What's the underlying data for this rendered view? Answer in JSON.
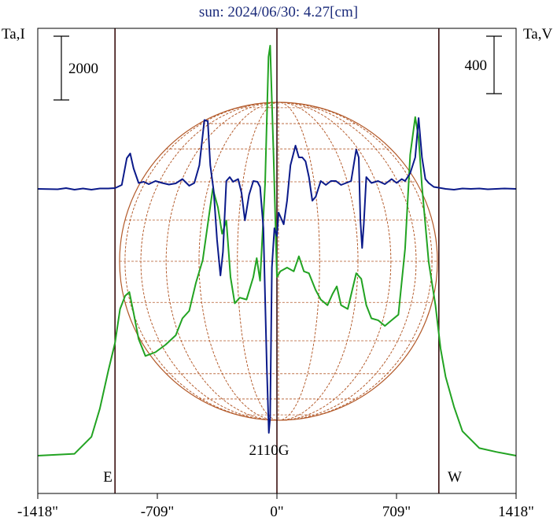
{
  "chart_data": {
    "type": "line",
    "title": "sun: 2024/06/30: 4.27[cm]",
    "left_axis_label": "Ta,I",
    "right_axis_label": "Ta,V",
    "left_scale_bar_label": "2000",
    "right_scale_bar_label": "400",
    "x_tick_labels": [
      "-1418\"",
      "-709\"",
      "0\"",
      "709\"",
      "1418\""
    ],
    "x_tick_values": [
      -1418,
      -709,
      0,
      709,
      1418
    ],
    "xlim": [
      -1418,
      1418
    ],
    "east_label": "E",
    "west_label": "W",
    "limb_lines": [
      -960,
      0,
      960
    ],
    "annotation": "2110G",
    "annotation_x": -40,
    "colors": {
      "stokes_I": "#22a322",
      "stokes_V": "#0b1a8a",
      "disk_grid": "#b35a2a",
      "frame": "#000000",
      "limb": "#3a1010",
      "title": "#1a2a7a"
    },
    "series": [
      {
        "key": "I",
        "values": [
          [
            -1418,
            0.0
          ],
          [
            -1200,
            0.01
          ],
          [
            -1100,
            0.1
          ],
          [
            -1050,
            0.25
          ],
          [
            -1000,
            0.45
          ],
          [
            -960,
            0.6
          ],
          [
            -930,
            0.78
          ],
          [
            -900,
            0.85
          ],
          [
            -875,
            0.87
          ],
          [
            -850,
            0.76
          ],
          [
            -820,
            0.62
          ],
          [
            -780,
            0.53
          ],
          [
            -720,
            0.55
          ],
          [
            -660,
            0.59
          ],
          [
            -600,
            0.64
          ],
          [
            -560,
            0.73
          ],
          [
            -520,
            0.77
          ],
          [
            -480,
            0.92
          ],
          [
            -440,
            1.04
          ],
          [
            -410,
            1.23
          ],
          [
            -380,
            1.42
          ],
          [
            -350,
            1.32
          ],
          [
            -325,
            1.18
          ],
          [
            -300,
            1.25
          ],
          [
            -275,
            0.95
          ],
          [
            -250,
            0.81
          ],
          [
            -220,
            0.84
          ],
          [
            -180,
            0.83
          ],
          [
            -140,
            0.95
          ],
          [
            -120,
            1.05
          ],
          [
            -100,
            0.93
          ],
          [
            -70,
            1.45
          ],
          [
            -50,
            2.12
          ],
          [
            -40,
            2.18
          ],
          [
            -20,
            1.6
          ],
          [
            0,
            0.95
          ],
          [
            20,
            0.98
          ],
          [
            60,
            1.0
          ],
          [
            100,
            0.98
          ],
          [
            130,
            1.06
          ],
          [
            160,
            0.98
          ],
          [
            190,
            0.97
          ],
          [
            230,
            0.88
          ],
          [
            260,
            0.83
          ],
          [
            300,
            0.8
          ],
          [
            330,
            0.86
          ],
          [
            355,
            0.9
          ],
          [
            380,
            0.8
          ],
          [
            420,
            0.78
          ],
          [
            470,
            0.97
          ],
          [
            500,
            0.94
          ],
          [
            530,
            0.8
          ],
          [
            560,
            0.73
          ],
          [
            600,
            0.72
          ],
          [
            640,
            0.69
          ],
          [
            680,
            0.72
          ],
          [
            720,
            0.75
          ],
          [
            760,
            1.1
          ],
          [
            790,
            1.6
          ],
          [
            820,
            1.8
          ],
          [
            840,
            1.69
          ],
          [
            860,
            1.43
          ],
          [
            900,
            1.03
          ],
          [
            940,
            0.8
          ],
          [
            970,
            0.57
          ],
          [
            1000,
            0.42
          ],
          [
            1050,
            0.26
          ],
          [
            1100,
            0.13
          ],
          [
            1200,
            0.04
          ],
          [
            1300,
            0.02
          ],
          [
            1418,
            0.0
          ]
        ]
      },
      {
        "key": "V",
        "values": [
          [
            -1418,
            0
          ],
          [
            -1300,
            -1
          ],
          [
            -1250,
            2
          ],
          [
            -1200,
            -2
          ],
          [
            -1150,
            1
          ],
          [
            -1100,
            -2
          ],
          [
            -1050,
            1
          ],
          [
            -1000,
            1
          ],
          [
            -960,
            2
          ],
          [
            -920,
            10
          ],
          [
            -890,
            78
          ],
          [
            -870,
            90
          ],
          [
            -850,
            52
          ],
          [
            -820,
            15
          ],
          [
            -790,
            18
          ],
          [
            -760,
            12
          ],
          [
            -720,
            20
          ],
          [
            -680,
            15
          ],
          [
            -640,
            11
          ],
          [
            -600,
            14
          ],
          [
            -560,
            25
          ],
          [
            -520,
            8
          ],
          [
            -490,
            15
          ],
          [
            -460,
            60
          ],
          [
            -430,
            175
          ],
          [
            -410,
            172
          ],
          [
            -395,
            60
          ],
          [
            -375,
            -5
          ],
          [
            -355,
            -130
          ],
          [
            -335,
            -220
          ],
          [
            -320,
            -160
          ],
          [
            -300,
            20
          ],
          [
            -280,
            30
          ],
          [
            -260,
            18
          ],
          [
            -230,
            25
          ],
          [
            -210,
            -10
          ],
          [
            -190,
            -80
          ],
          [
            -165,
            -15
          ],
          [
            -140,
            20
          ],
          [
            -115,
            18
          ],
          [
            -100,
            5
          ],
          [
            -80,
            -100
          ],
          [
            -60,
            -450
          ],
          [
            -48,
            -620
          ],
          [
            -40,
            -580
          ],
          [
            -30,
            -200
          ],
          [
            -15,
            -100
          ],
          [
            0,
            -120
          ],
          [
            10,
            -60
          ],
          [
            20,
            -70
          ],
          [
            40,
            -90
          ],
          [
            60,
            -30
          ],
          [
            80,
            60
          ],
          [
            110,
            110
          ],
          [
            130,
            80
          ],
          [
            150,
            80
          ],
          [
            170,
            70
          ],
          [
            190,
            30
          ],
          [
            210,
            -30
          ],
          [
            230,
            -20
          ],
          [
            260,
            20
          ],
          [
            290,
            10
          ],
          [
            320,
            20
          ],
          [
            350,
            20
          ],
          [
            380,
            10
          ],
          [
            410,
            15
          ],
          [
            440,
            20
          ],
          [
            470,
            100
          ],
          [
            485,
            80
          ],
          [
            495,
            -80
          ],
          [
            505,
            -150
          ],
          [
            515,
            -90
          ],
          [
            530,
            30
          ],
          [
            560,
            15
          ],
          [
            600,
            20
          ],
          [
            640,
            12
          ],
          [
            680,
            25
          ],
          [
            710,
            15
          ],
          [
            740,
            25
          ],
          [
            760,
            20
          ],
          [
            790,
            40
          ],
          [
            820,
            80
          ],
          [
            840,
            180
          ],
          [
            860,
            80
          ],
          [
            880,
            25
          ],
          [
            900,
            15
          ],
          [
            930,
            5
          ],
          [
            960,
            3
          ],
          [
            1000,
            0
          ],
          [
            1050,
            -2
          ],
          [
            1100,
            1
          ],
          [
            1150,
            0
          ],
          [
            1200,
            1
          ],
          [
            1250,
            -1
          ],
          [
            1300,
            0
          ],
          [
            1350,
            1
          ],
          [
            1418,
            0
          ]
        ]
      }
    ]
  }
}
